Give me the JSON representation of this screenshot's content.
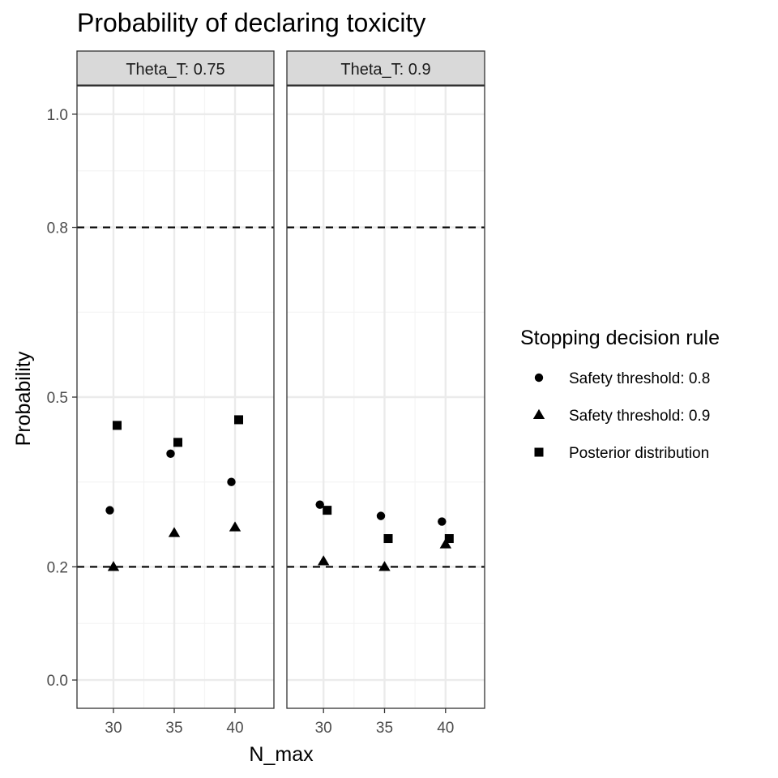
{
  "chart_data": {
    "type": "scatter",
    "title": "Probability of declaring toxicity",
    "xlabel": "N_max",
    "ylabel": "Probability",
    "ylim": [
      -0.05,
      1.05
    ],
    "x_ticks": [
      30,
      35,
      40
    ],
    "x_tick_labels": [
      "30",
      "35",
      "40"
    ],
    "y_ticks": [
      0.0,
      0.2,
      0.5,
      0.8,
      1.0
    ],
    "y_tick_labels": [
      "0.0",
      "0.2",
      "0.5",
      "0.8",
      "1.0"
    ],
    "reference_lines": [
      0.2,
      0.8
    ],
    "grid": true,
    "facets": [
      {
        "label": "Theta_T: 0.75",
        "series": [
          {
            "name": "Safety threshold: 0.8",
            "shape": "circle",
            "x": [
              30,
              35,
              40
            ],
            "y": [
              0.3,
              0.4,
              0.35
            ]
          },
          {
            "name": "Safety threshold: 0.9",
            "shape": "triangle",
            "x": [
              30,
              35,
              40
            ],
            "y": [
              0.2,
              0.26,
              0.27
            ]
          },
          {
            "name": "Posterior distribution",
            "shape": "square",
            "x": [
              30,
              35,
              40
            ],
            "y": [
              0.45,
              0.42,
              0.46
            ]
          }
        ]
      },
      {
        "label": "Theta_T: 0.9",
        "series": [
          {
            "name": "Safety threshold: 0.8",
            "shape": "circle",
            "x": [
              30,
              35,
              40
            ],
            "y": [
              0.31,
              0.29,
              0.28
            ]
          },
          {
            "name": "Safety threshold: 0.9",
            "shape": "triangle",
            "x": [
              30,
              35,
              40
            ],
            "y": [
              0.21,
              0.2,
              0.24
            ]
          },
          {
            "name": "Posterior distribution",
            "shape": "square",
            "x": [
              30,
              35,
              40
            ],
            "y": [
              0.3,
              0.25,
              0.25
            ]
          }
        ]
      }
    ],
    "legend": {
      "title": "Stopping decision rule",
      "position": "right",
      "entries": [
        {
          "label": "Safety threshold: 0.8",
          "shape": "circle"
        },
        {
          "label": "Safety threshold: 0.9",
          "shape": "triangle"
        },
        {
          "label": "Posterior distribution",
          "shape": "square"
        }
      ]
    },
    "colors": {
      "points": "#000000",
      "grid": "#ebebeb",
      "strip": "#d9d9d9",
      "border": "#333333"
    }
  }
}
